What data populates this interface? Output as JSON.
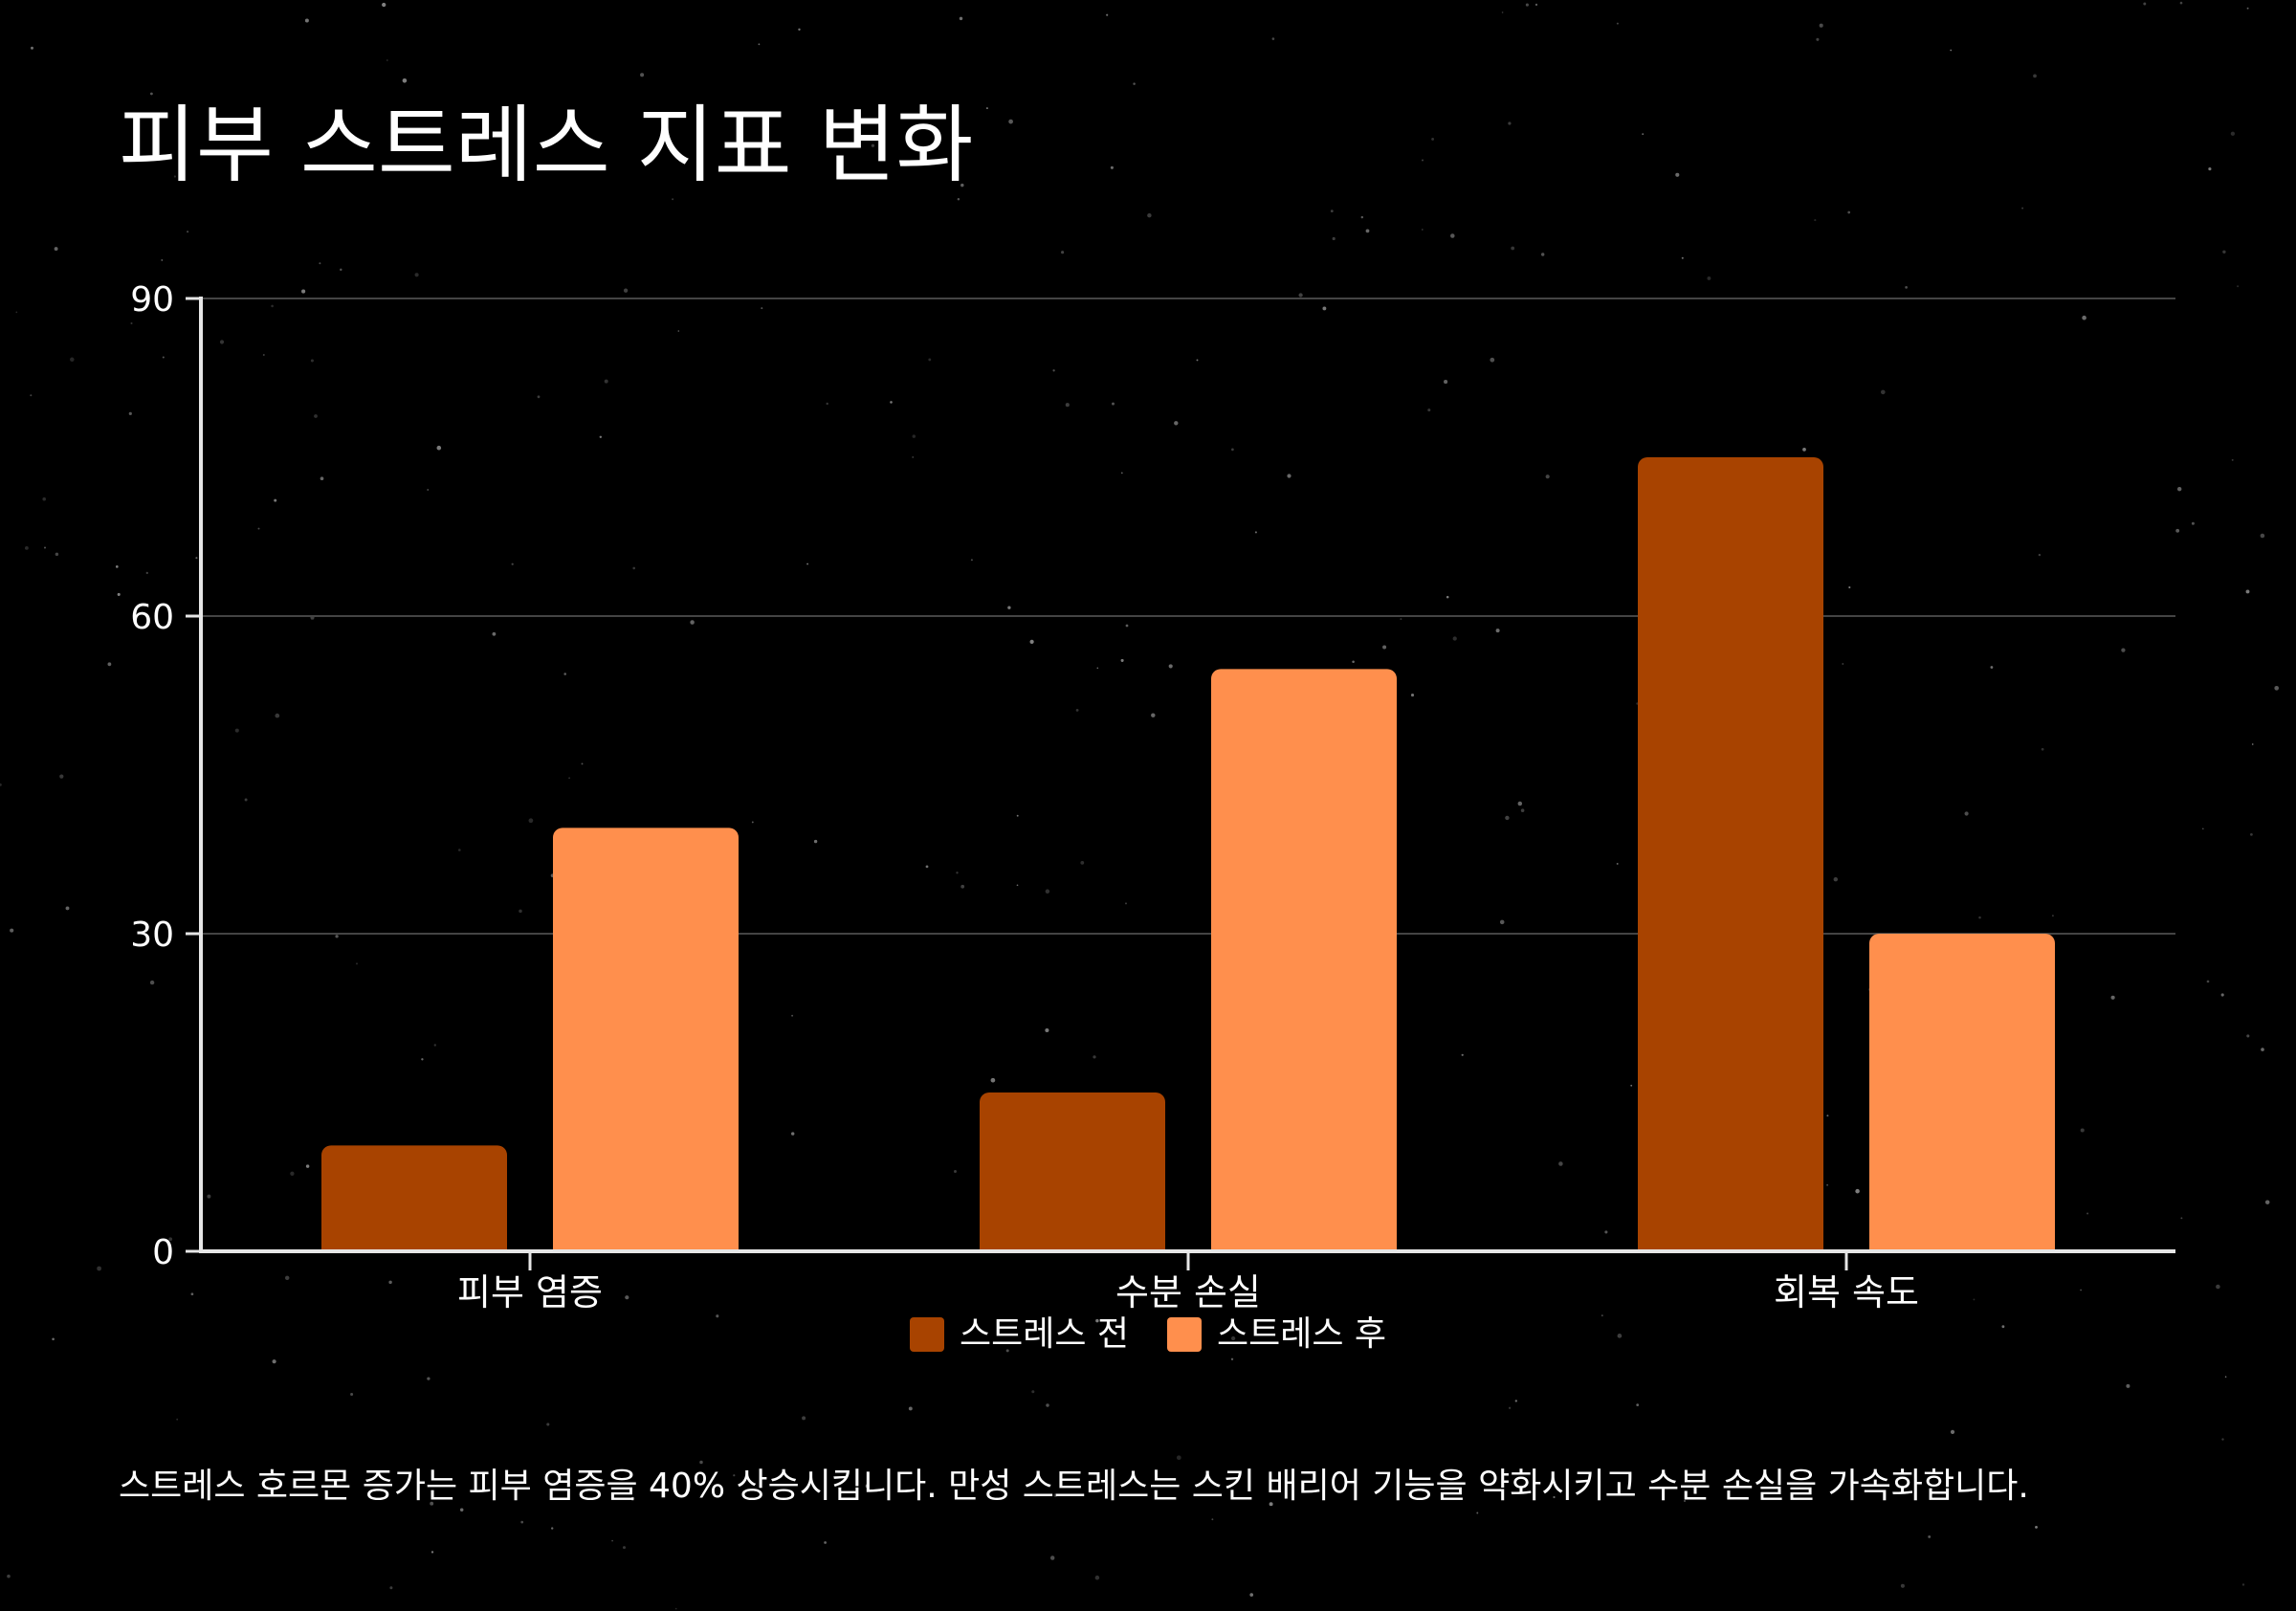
{
  "title": "피부 스트레스 지표 변화",
  "caption": "스트레스 호르몬 증가는 피부 염증을 40% 상승시킵니다. 만성 스트레스는 스킨 배리어 기능을 약화시키고 수분 손실을 가속화합니다.",
  "colors": {
    "background": "#000000",
    "text": "#ffffff",
    "grid": "#444444",
    "axis": "#e6e6e6"
  },
  "chart_data": {
    "type": "bar",
    "categories": [
      "피부 염증",
      "수분 손실",
      "회복 속도"
    ],
    "series": [
      {
        "name": "스트레스 전",
        "color": "#a84300",
        "values": [
          10,
          15,
          75
        ]
      },
      {
        "name": "스트레스 후",
        "color": "#ff8f4d",
        "values": [
          40,
          55,
          30
        ]
      }
    ],
    "ylim": [
      0,
      90
    ],
    "yticks": [
      0,
      30,
      60,
      90
    ],
    "grid": true,
    "legend_position": "bottom-center"
  }
}
